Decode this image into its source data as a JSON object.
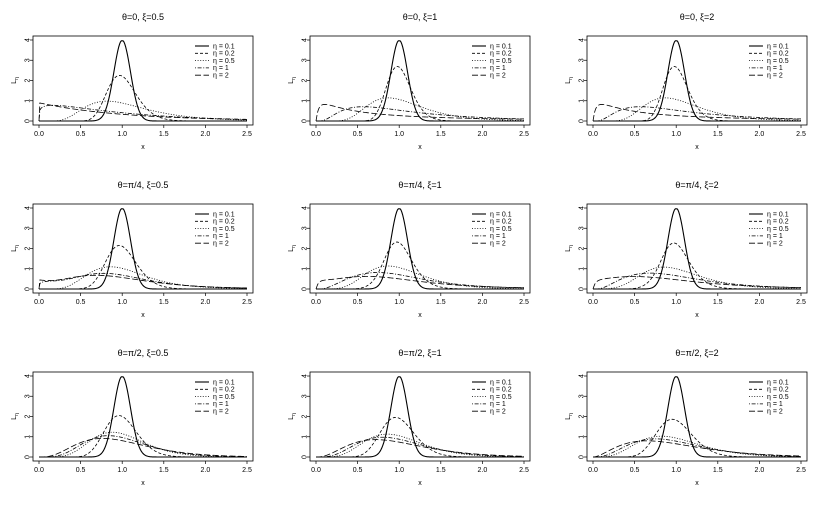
{
  "figure": {
    "xlabel": "x",
    "ylabel": "L",
    "ylabel_sub": "η"
  },
  "legend_labels": [
    "η = 0.1",
    "η = 0.2",
    "η = 0.5",
    "η = 1",
    "η = 2"
  ],
  "line_styles": [
    "solid",
    "dashed",
    "dotted",
    "dotdash",
    "longdash"
  ],
  "colors": {
    "line": "#000000",
    "background": "#ffffff"
  },
  "chart_data": [
    {
      "type": "line",
      "title": "θ=0, ξ=0.5",
      "theta": 0,
      "xi": 0.5,
      "xlim": [
        0,
        2.5
      ],
      "ylim": [
        0,
        4
      ],
      "x_ticks": [
        "0.0",
        "0.5",
        "1.0",
        "1.5",
        "2.0",
        "2.5"
      ],
      "y_ticks": [
        "0",
        "1",
        "2",
        "3",
        "4"
      ],
      "legend": "top-right",
      "eta": [
        0.1,
        0.2,
        0.5,
        1,
        2
      ]
    },
    {
      "type": "line",
      "title": "θ=0, ξ=1",
      "theta": 0,
      "xi": 1,
      "xlim": [
        0,
        2.5
      ],
      "ylim": [
        0,
        4
      ],
      "x_ticks": [
        "0.0",
        "0.5",
        "1.0",
        "1.5",
        "2.0",
        "2.5"
      ],
      "y_ticks": [
        "0",
        "1",
        "2",
        "3",
        "4"
      ],
      "legend": "top-right",
      "eta": [
        0.1,
        0.2,
        0.5,
        1,
        2
      ]
    },
    {
      "type": "line",
      "title": "θ=0, ξ=2",
      "theta": 0,
      "xi": 2,
      "xlim": [
        0,
        2.5
      ],
      "ylim": [
        0,
        4
      ],
      "x_ticks": [
        "0.0",
        "0.5",
        "1.0",
        "1.5",
        "2.0",
        "2.5"
      ],
      "y_ticks": [
        "0",
        "1",
        "2",
        "3",
        "4"
      ],
      "legend": "top-right",
      "eta": [
        0.1,
        0.2,
        0.5,
        1,
        2
      ]
    },
    {
      "type": "line",
      "title": "θ=π/4, ξ=0.5",
      "theta": 0.7854,
      "xi": 0.5,
      "xlim": [
        0,
        2.5
      ],
      "ylim": [
        0,
        4
      ],
      "x_ticks": [
        "0.0",
        "0.5",
        "1.0",
        "1.5",
        "2.0",
        "2.5"
      ],
      "y_ticks": [
        "0",
        "1",
        "2",
        "3",
        "4"
      ],
      "legend": "top-right",
      "eta": [
        0.1,
        0.2,
        0.5,
        1,
        2
      ]
    },
    {
      "type": "line",
      "title": "θ=π/4, ξ=1",
      "theta": 0.7854,
      "xi": 1,
      "xlim": [
        0,
        2.5
      ],
      "ylim": [
        0,
        4
      ],
      "x_ticks": [
        "0.0",
        "0.5",
        "1.0",
        "1.5",
        "2.0",
        "2.5"
      ],
      "y_ticks": [
        "0",
        "1",
        "2",
        "3",
        "4"
      ],
      "legend": "top-right",
      "eta": [
        0.1,
        0.2,
        0.5,
        1,
        2
      ]
    },
    {
      "type": "line",
      "title": "θ=π/4, ξ=2",
      "theta": 0.7854,
      "xi": 2,
      "xlim": [
        0,
        2.5
      ],
      "ylim": [
        0,
        4
      ],
      "x_ticks": [
        "0.0",
        "0.5",
        "1.0",
        "1.5",
        "2.0",
        "2.5"
      ],
      "y_ticks": [
        "0",
        "1",
        "2",
        "3",
        "4"
      ],
      "legend": "top-right",
      "eta": [
        0.1,
        0.2,
        0.5,
        1,
        2
      ]
    },
    {
      "type": "line",
      "title": "θ=π/2, ξ=0.5",
      "theta": 1.5708,
      "xi": 0.5,
      "xlim": [
        0,
        2.5
      ],
      "ylim": [
        0,
        4
      ],
      "x_ticks": [
        "0.0",
        "0.5",
        "1.0",
        "1.5",
        "2.0",
        "2.5"
      ],
      "y_ticks": [
        "0",
        "1",
        "2",
        "3",
        "4"
      ],
      "legend": "top-right",
      "eta": [
        0.1,
        0.2,
        0.5,
        1,
        2
      ]
    },
    {
      "type": "line",
      "title": "θ=π/2, ξ=1",
      "theta": 1.5708,
      "xi": 1,
      "xlim": [
        0,
        2.5
      ],
      "ylim": [
        0,
        4
      ],
      "x_ticks": [
        "0.0",
        "0.5",
        "1.0",
        "1.5",
        "2.0",
        "2.5"
      ],
      "y_ticks": [
        "0",
        "1",
        "2",
        "3",
        "4"
      ],
      "legend": "top-right",
      "eta": [
        0.1,
        0.2,
        0.5,
        1,
        2
      ]
    },
    {
      "type": "line",
      "title": "θ=π/2, ξ=2",
      "theta": 1.5708,
      "xi": 2,
      "xlim": [
        0,
        2.5
      ],
      "ylim": [
        0,
        4
      ],
      "x_ticks": [
        "0.0",
        "0.5",
        "1.0",
        "1.5",
        "2.0",
        "2.5"
      ],
      "y_ticks": [
        "0",
        "1",
        "2",
        "3",
        "4"
      ],
      "legend": "top-right",
      "eta": [
        0.1,
        0.2,
        0.5,
        1,
        2
      ]
    }
  ]
}
